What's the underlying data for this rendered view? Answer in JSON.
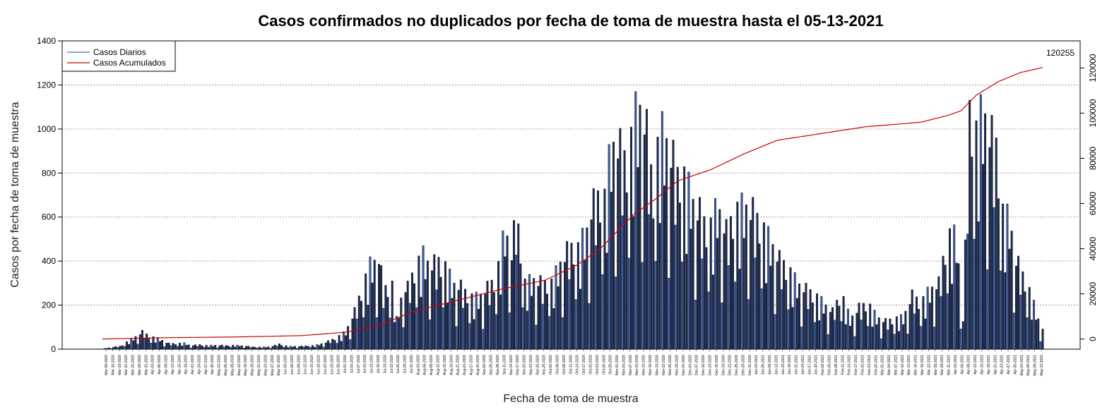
{
  "chart_data": {
    "type": "bar",
    "title": "Casos confirmados no duplicados por fecha de toma de muestra hasta el 05-13-2021",
    "xlabel": "Fecha de toma de muestra",
    "ylabel": "Casos por fecha de toma de muestra",
    "ylim": [
      0,
      1400
    ],
    "y_ticks": [
      "0",
      "200",
      "400",
      "600",
      "800",
      "1000",
      "1200",
      "1400"
    ],
    "y2lim": [
      -4500,
      132000
    ],
    "y2_ticks": [
      "0",
      "20000",
      "40000",
      "60000",
      "80000",
      "100000",
      "120000"
    ],
    "grid": "horizontal dotted",
    "legend_position": "top-left",
    "legend": [
      {
        "label": "Casos Diarios",
        "color": "#4472c4"
      },
      {
        "label": "Casos Acumulados",
        "color": "#cc0000"
      }
    ],
    "colors": {
      "bar_dark": "#1c2b55",
      "bar_light": "#3a5fae",
      "cumulative": "#cc0000"
    },
    "cumulative_end_label": "120255",
    "x_dates": [
      "Mar-09-2020",
      "Mar-16-2020",
      "Mar-19-2020",
      "Mar-22-2020",
      "Mar-25-2020",
      "Mar-28-2020",
      "Mar-31-2020",
      "Apr-03-2020",
      "Apr-06-2020",
      "Apr-09-2020",
      "Apr-12-2020",
      "Apr-15-2020",
      "Apr-18-2020",
      "Apr-21-2020",
      "Apr-24-2020",
      "Apr-27-2020",
      "Apr-30-2020",
      "May-03-2020",
      "May-06-2020",
      "May-09-2020",
      "May-12-2020",
      "May-15-2020",
      "May-18-2020",
      "May-21-2020",
      "May-24-2020",
      "May-27-2020",
      "May-31-2020",
      "Jun-03-2020",
      "Jun-06-2020",
      "Jun-09-2020",
      "Jun-12-2020",
      "Jun-15-2020",
      "Jun-18-2020",
      "Jun-22-2020",
      "Jun-25-2020",
      "Jun-28-2020",
      "Jul-01-2020",
      "Jul-04-2020",
      "Jul-07-2020",
      "Jul-10-2020",
      "Jul-13-2020",
      "Jul-16-2020",
      "Jul-19-2020",
      "Jul-22-2020",
      "Jul-25-2020",
      "Jul-28-2020",
      "Jul-31-2020",
      "Aug-03-2020",
      "Aug-06-2020",
      "Aug-09-2020",
      "Aug-12-2020",
      "Aug-15-2020",
      "Aug-18-2020",
      "Aug-21-2020",
      "Aug-24-2020",
      "Aug-27-2020",
      "Aug-30-2020",
      "Sep-02-2020",
      "Sep-05-2020",
      "Sep-08-2020",
      "Sep-11-2020",
      "Sep-14-2020",
      "Sep-17-2020",
      "Sep-20-2020",
      "Sep-23-2020",
      "Sep-26-2020",
      "Sep-29-2020",
      "Oct-02-2020",
      "Oct-05-2020",
      "Oct-08-2020",
      "Oct-11-2020",
      "Oct-14-2020",
      "Oct-17-2020",
      "Oct-20-2020",
      "Oct-23-2020",
      "Oct-26-2020",
      "Oct-29-2020",
      "Nov-01-2020",
      "Nov-04-2020",
      "Nov-07-2020",
      "Nov-10-2020",
      "Nov-13-2020",
      "Nov-16-2020",
      "Nov-19-2020",
      "Nov-22-2020",
      "Nov-25-2020",
      "Nov-28-2020",
      "Dec-01-2020",
      "Dec-04-2020",
      "Dec-07-2020",
      "Dec-10-2020",
      "Dec-13-2020",
      "Dec-16-2020",
      "Dec-19-2020",
      "Dec-22-2020",
      "Dec-25-2020",
      "Dec-28-2020",
      "Dec-31-2020",
      "Jan-03-2021",
      "Jan-06-2021",
      "Jan-09-2021",
      "Jan-12-2021",
      "Jan-15-2021",
      "Jan-18-2021",
      "Jan-21-2021",
      "Jan-24-2021",
      "Jan-27-2021",
      "Jan-30-2021",
      "Feb-02-2021",
      "Feb-05-2021",
      "Feb-08-2021",
      "Feb-11-2021",
      "Feb-14-2021",
      "Feb-17-2021",
      "Feb-20-2021",
      "Feb-23-2021",
      "Feb-26-2021",
      "Mar-01-2021",
      "Mar-04-2021",
      "Mar-07-2021",
      "Mar-10-2021",
      "Mar-13-2021",
      "Mar-16-2021",
      "Mar-19-2021",
      "Mar-22-2021",
      "Mar-25-2021",
      "Mar-28-2021",
      "Mar-31-2021",
      "Apr-03-2021",
      "Apr-06-2021",
      "Apr-09-2021",
      "Apr-12-2021",
      "Apr-15-2021",
      "Apr-18-2021",
      "Apr-21-2021",
      "Apr-24-2021",
      "Apr-27-2021",
      "Apr-30-2021",
      "May-03-2021",
      "May-06-2021",
      "May-09-2021",
      "May-12-2021"
    ],
    "daily_keyframes": [
      [
        0,
        2
      ],
      [
        8,
        15
      ],
      [
        14,
        55
      ],
      [
        18,
        86
      ],
      [
        22,
        62
      ],
      [
        26,
        50
      ],
      [
        30,
        28
      ],
      [
        33,
        28
      ],
      [
        37,
        30
      ],
      [
        40,
        18
      ],
      [
        44,
        22
      ],
      [
        48,
        18
      ],
      [
        52,
        20
      ],
      [
        56,
        18
      ],
      [
        60,
        20
      ],
      [
        64,
        16
      ],
      [
        68,
        12
      ],
      [
        72,
        10
      ],
      [
        76,
        12
      ],
      [
        80,
        26
      ],
      [
        84,
        14
      ],
      [
        88,
        14
      ],
      [
        92,
        16
      ],
      [
        96,
        18
      ],
      [
        100,
        30
      ],
      [
        104,
        48
      ],
      [
        108,
        70
      ],
      [
        110,
        88
      ],
      [
        114,
        190
      ],
      [
        118,
        320
      ],
      [
        121,
        420
      ],
      [
        125,
        460
      ],
      [
        127,
        300
      ],
      [
        131,
        320
      ],
      [
        133,
        150
      ],
      [
        136,
        305
      ],
      [
        138,
        310
      ],
      [
        142,
        420
      ],
      [
        145,
        470
      ],
      [
        148,
        420
      ],
      [
        152,
        440
      ],
      [
        156,
        400
      ],
      [
        158,
        330
      ],
      [
        162,
        315
      ],
      [
        166,
        260
      ],
      [
        170,
        260
      ],
      [
        174,
        310
      ],
      [
        178,
        350
      ],
      [
        182,
        600
      ],
      [
        185,
        480
      ],
      [
        187,
        690
      ],
      [
        191,
        330
      ],
      [
        195,
        350
      ],
      [
        199,
        330
      ],
      [
        203,
        330
      ],
      [
        207,
        430
      ],
      [
        211,
        510
      ],
      [
        215,
        500
      ],
      [
        219,
        600
      ],
      [
        221,
        700
      ],
      [
        223,
        760
      ],
      [
        227,
        750
      ],
      [
        230,
        1020
      ],
      [
        233,
        1030
      ],
      [
        236,
        950
      ],
      [
        238,
        920
      ],
      [
        240,
        1160
      ],
      [
        242,
        1180
      ],
      [
        244,
        1230
      ],
      [
        246,
        1090
      ],
      [
        249,
        780
      ],
      [
        252,
        1100
      ],
      [
        255,
        1040
      ],
      [
        258,
        950
      ],
      [
        260,
        870
      ],
      [
        262,
        880
      ],
      [
        264,
        830
      ],
      [
        266,
        780
      ],
      [
        268,
        700
      ],
      [
        270,
        690
      ],
      [
        274,
        580
      ],
      [
        278,
        720
      ],
      [
        280,
        660
      ],
      [
        282,
        590
      ],
      [
        286,
        680
      ],
      [
        290,
        720
      ],
      [
        294,
        690
      ],
      [
        298,
        610
      ],
      [
        302,
        540
      ],
      [
        306,
        450
      ],
      [
        310,
        400
      ],
      [
        314,
        330
      ],
      [
        318,
        300
      ],
      [
        322,
        270
      ],
      [
        326,
        230
      ],
      [
        330,
        190
      ],
      [
        334,
        280
      ],
      [
        338,
        150
      ],
      [
        342,
        210
      ],
      [
        346,
        230
      ],
      [
        350,
        160
      ],
      [
        354,
        140
      ],
      [
        358,
        150
      ],
      [
        362,
        160
      ],
      [
        366,
        270
      ],
      [
        370,
        230
      ],
      [
        374,
        300
      ],
      [
        378,
        330
      ],
      [
        382,
        560
      ],
      [
        384,
        570
      ],
      [
        386,
        560
      ],
      [
        389,
        150
      ],
      [
        392,
        1190
      ],
      [
        395,
        1070
      ],
      [
        398,
        1200
      ],
      [
        401,
        1090
      ],
      [
        404,
        1010
      ],
      [
        407,
        680
      ],
      [
        410,
        650
      ],
      [
        413,
        450
      ],
      [
        416,
        370
      ],
      [
        419,
        290
      ],
      [
        422,
        190
      ],
      [
        424,
        110
      ]
    ],
    "cumulative_keyframes": [
      [
        0,
        0
      ],
      [
        30,
        600
      ],
      [
        60,
        900
      ],
      [
        90,
        1500
      ],
      [
        110,
        3000
      ],
      [
        125,
        6000
      ],
      [
        140,
        12000
      ],
      [
        160,
        17000
      ],
      [
        180,
        22000
      ],
      [
        200,
        26000
      ],
      [
        215,
        33000
      ],
      [
        225,
        40000
      ],
      [
        240,
        55000
      ],
      [
        250,
        62000
      ],
      [
        260,
        70000
      ],
      [
        275,
        75000
      ],
      [
        290,
        82000
      ],
      [
        305,
        88000
      ],
      [
        325,
        91000
      ],
      [
        345,
        94000
      ],
      [
        370,
        96000
      ],
      [
        382,
        99000
      ],
      [
        388,
        101000
      ],
      [
        395,
        108000
      ],
      [
        405,
        114000
      ],
      [
        415,
        118000
      ],
      [
        425,
        120255
      ]
    ]
  }
}
